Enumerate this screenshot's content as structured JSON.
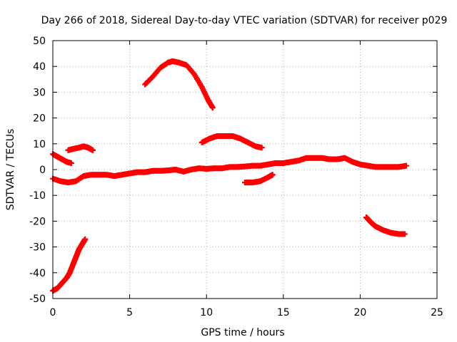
{
  "chart_data": {
    "type": "scatter",
    "title": "Day 266 of 2018, Sidereal Day-to-day VTEC variation (SDTVAR) for receiver p029",
    "xlabel": "GPS time / hours",
    "ylabel": "SDTVAR / TECUs",
    "xlim": [
      0,
      25
    ],
    "ylim": [
      -50,
      50
    ],
    "xticks": [
      0,
      5,
      10,
      15,
      20,
      25
    ],
    "yticks": [
      -50,
      -40,
      -30,
      -20,
      -10,
      0,
      10,
      20,
      30,
      40,
      50
    ],
    "grid": true,
    "legend": "none",
    "marker": "plus",
    "series_color": "#ff0000",
    "series": [
      {
        "name": "arc-main",
        "points": [
          [
            0,
            -3.5
          ],
          [
            0.5,
            -4.5
          ],
          [
            1,
            -5
          ],
          [
            1.5,
            -4.5
          ],
          [
            2,
            -2.5
          ],
          [
            2.5,
            -2
          ],
          [
            3,
            -2
          ],
          [
            3.5,
            -2
          ],
          [
            4,
            -2.5
          ],
          [
            4.5,
            -2
          ],
          [
            5,
            -1.5
          ],
          [
            5.5,
            -1
          ],
          [
            6,
            -1
          ],
          [
            6.5,
            -0.5
          ],
          [
            7,
            -0.5
          ],
          [
            7.5,
            -0.3
          ],
          [
            8,
            0
          ],
          [
            8.5,
            -0.8
          ],
          [
            9,
            0
          ],
          [
            9.5,
            0.5
          ],
          [
            10,
            0.3
          ],
          [
            10.5,
            0.5
          ],
          [
            11,
            0.5
          ],
          [
            11.5,
            1
          ],
          [
            12,
            1
          ],
          [
            12.5,
            1.2
          ],
          [
            13,
            1.5
          ],
          [
            13.5,
            1.5
          ],
          [
            14,
            2
          ],
          [
            14.5,
            2.5
          ],
          [
            15,
            2.5
          ],
          [
            15.5,
            3
          ],
          [
            16,
            3.5
          ],
          [
            16.5,
            4.5
          ],
          [
            17,
            4.5
          ],
          [
            17.5,
            4.5
          ],
          [
            18,
            4
          ],
          [
            18.5,
            4
          ],
          [
            19,
            4.5
          ],
          [
            19.5,
            3
          ],
          [
            20,
            2
          ],
          [
            20.5,
            1.5
          ],
          [
            21,
            1
          ],
          [
            21.5,
            1
          ],
          [
            22,
            1
          ],
          [
            22.5,
            1
          ],
          [
            23,
            1.5
          ]
        ]
      },
      {
        "name": "arc-a",
        "points": [
          [
            0,
            6
          ],
          [
            0.3,
            5
          ],
          [
            0.6,
            4
          ],
          [
            0.9,
            3
          ],
          [
            1.2,
            2.5
          ]
        ]
      },
      {
        "name": "arc-b",
        "points": [
          [
            1,
            7.5
          ],
          [
            1.3,
            8
          ],
          [
            1.7,
            8.5
          ],
          [
            2,
            9
          ],
          [
            2.3,
            8.5
          ],
          [
            2.6,
            7.5
          ]
        ]
      },
      {
        "name": "arc-c",
        "points": [
          [
            0,
            -47
          ],
          [
            0.3,
            -46
          ],
          [
            0.6,
            -44
          ],
          [
            0.9,
            -42
          ],
          [
            1.1,
            -40
          ],
          [
            1.3,
            -37
          ],
          [
            1.5,
            -34
          ],
          [
            1.7,
            -31
          ],
          [
            1.9,
            -29
          ],
          [
            2.1,
            -27
          ]
        ]
      },
      {
        "name": "arc-d",
        "points": [
          [
            6,
            33
          ],
          [
            6.5,
            36
          ],
          [
            7,
            39.5
          ],
          [
            7.5,
            41.5
          ],
          [
            7.8,
            42
          ],
          [
            8.2,
            41.5
          ],
          [
            8.7,
            40.5
          ],
          [
            9.2,
            37
          ],
          [
            9.7,
            32
          ],
          [
            10.1,
            27
          ],
          [
            10.4,
            24
          ]
        ]
      },
      {
        "name": "arc-e",
        "points": [
          [
            9.7,
            10.5
          ],
          [
            10.2,
            12
          ],
          [
            10.7,
            13
          ],
          [
            11.2,
            13
          ],
          [
            11.7,
            13
          ],
          [
            12.2,
            12
          ],
          [
            12.7,
            10.5
          ],
          [
            13.2,
            9
          ],
          [
            13.6,
            8.5
          ]
        ]
      },
      {
        "name": "arc-f",
        "points": [
          [
            12.5,
            -5
          ],
          [
            13,
            -5
          ],
          [
            13.5,
            -4.5
          ],
          [
            14,
            -3
          ],
          [
            14.3,
            -2
          ]
        ]
      },
      {
        "name": "arc-g",
        "points": [
          [
            20.4,
            -18.5
          ],
          [
            20.7,
            -20.5
          ],
          [
            21,
            -22
          ],
          [
            21.5,
            -23.5
          ],
          [
            22,
            -24.5
          ],
          [
            22.5,
            -25
          ],
          [
            22.9,
            -25
          ]
        ]
      }
    ]
  }
}
